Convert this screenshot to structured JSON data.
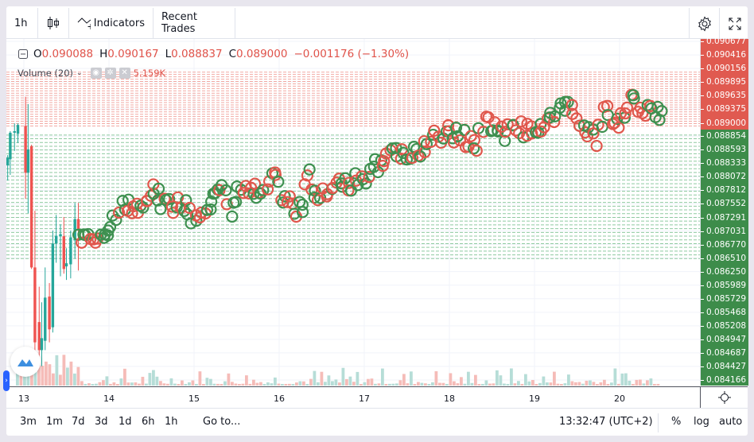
{
  "toolbar": {
    "interval": "1h",
    "indicators": "Indicators",
    "recent_trades": "Recent Trades"
  },
  "legend": {
    "o_label": "O",
    "o": "0.090088",
    "h_label": "H",
    "h": "0.090167",
    "l_label": "L",
    "l": "0.088837",
    "c_label": "C",
    "c": "0.089000",
    "change": "−0.001176 (−1.30%)"
  },
  "volume": {
    "label": "Volume (20)",
    "value": "5.159K"
  },
  "price_axis": {
    "labels": [
      "0.090677",
      "0.090416",
      "0.090156",
      "0.089895",
      "0.089635",
      "0.089375",
      "0.088854",
      "0.088593",
      "0.088333",
      "0.088072",
      "0.087812",
      "0.087552",
      "0.087291",
      "0.087031",
      "0.086770",
      "0.086510",
      "0.086250",
      "0.085989",
      "0.085729",
      "0.085468",
      "0.085208",
      "0.084947",
      "0.084687",
      "0.084427",
      "0.084166"
    ],
    "current": "0.089000",
    "ask_color": "#e05a50",
    "bid_color": "#3d8c4a",
    "ylim": [
      0.084166,
      0.090677
    ]
  },
  "time_axis": {
    "labels": [
      "13",
      "14",
      "15",
      "16",
      "17",
      "18",
      "19",
      "20"
    ]
  },
  "bottom": {
    "ranges": [
      "3m",
      "1m",
      "7d",
      "3d",
      "1d",
      "6h",
      "1h"
    ],
    "goto": "Go to...",
    "clock": "13:32:47 (UTC+2)",
    "percent": "%",
    "log": "log",
    "auto": "auto"
  },
  "chart_data": {
    "type": "candlestick",
    "candles": [
      [
        12.81,
        0.08829,
        0.08849,
        0.088,
        0.08844
      ],
      [
        12.84,
        0.08841,
        0.08895,
        0.08811,
        0.08892
      ],
      [
        12.89,
        0.08892,
        0.0891,
        0.08857,
        0.08895
      ],
      [
        12.93,
        0.0889,
        0.0891,
        0.08872,
        0.08907
      ],
      [
        13.02,
        0.08905,
        0.08961,
        0.08765,
        0.08815
      ],
      [
        13.05,
        0.08815,
        0.08947,
        0.08737,
        0.0886
      ],
      [
        13.09,
        0.08866,
        0.08869,
        0.0863,
        0.08633
      ],
      [
        13.13,
        0.08633,
        0.08742,
        0.08451,
        0.08489
      ],
      [
        13.18,
        0.08528,
        0.08596,
        0.08443,
        0.08474
      ],
      [
        13.21,
        0.08474,
        0.08566,
        0.08443,
        0.08497
      ],
      [
        13.25,
        0.08492,
        0.08633,
        0.08474,
        0.08575
      ],
      [
        13.3,
        0.08577,
        0.08603,
        0.08489,
        0.08514
      ],
      [
        13.34,
        0.08518,
        0.08704,
        0.08508,
        0.08679
      ],
      [
        13.38,
        0.08679,
        0.08734,
        0.08642,
        0.08694
      ],
      [
        13.43,
        0.08693,
        0.08716,
        0.08616,
        0.08697
      ],
      [
        13.47,
        0.08693,
        0.0873,
        0.08621,
        0.0863
      ],
      [
        13.5,
        0.08635,
        0.0867,
        0.08609,
        0.08641
      ],
      [
        13.55,
        0.08639,
        0.08704,
        0.08612,
        0.08691
      ],
      [
        13.6,
        0.08685,
        0.08757,
        0.0865,
        0.08726
      ],
      [
        13.64,
        0.08726,
        0.08757,
        0.08627,
        0.08704
      ]
    ],
    "trades": [
      [
        13.65,
        0.08681
      ],
      [
        13.93,
        0.086887
      ],
      [
        14.03,
        0.087192
      ],
      [
        14.21,
        0.087574
      ],
      [
        14.4,
        0.087345
      ],
      [
        14.54,
        0.087804
      ],
      [
        14.68,
        0.087498
      ],
      [
        14.87,
        0.087574
      ],
      [
        15.01,
        0.087269
      ],
      [
        15.15,
        0.087498
      ],
      [
        15.34,
        0.087804
      ],
      [
        15.43,
        0.087422
      ],
      [
        15.52,
        0.08788
      ],
      [
        15.71,
        0.087804
      ],
      [
        15.94,
        0.088033
      ],
      [
        16.08,
        0.087574
      ],
      [
        16.27,
        0.087422
      ],
      [
        16.32,
        0.088186
      ],
      [
        16.46,
        0.087651
      ],
      [
        16.64,
        0.08788
      ],
      [
        16.83,
        0.087956
      ],
      [
        17.02,
        0.088033
      ],
      [
        17.11,
        0.088186
      ],
      [
        17.3,
        0.088644
      ],
      [
        17.39,
        0.088415
      ],
      [
        17.58,
        0.088491
      ],
      [
        17.77,
        0.088721
      ],
      [
        17.95,
        0.08895
      ],
      [
        18.09,
        0.088873
      ],
      [
        18.33,
        0.088721
      ],
      [
        18.42,
        0.089179
      ],
      [
        18.61,
        0.088873
      ],
      [
        18.79,
        0.089026
      ],
      [
        18.98,
        0.08895
      ],
      [
        19.17,
        0.089179
      ],
      [
        19.4,
        0.089408
      ],
      [
        19.54,
        0.089103
      ],
      [
        19.73,
        0.088721
      ],
      [
        19.82,
        0.089408
      ],
      [
        19.96,
        0.089026
      ],
      [
        20.1,
        0.089485
      ],
      [
        20.24,
        0.089485
      ],
      [
        20.38,
        0.089256
      ],
      [
        20.52,
        0.089256
      ]
    ],
    "ask_levels": [
      0.08905,
      0.09012
    ],
    "bid_levels": [
      0.0865,
      0.0889
    ],
    "up_color": "#26a69a",
    "down_color": "#ef5350",
    "xlim": [
      12.72,
      20.88
    ]
  }
}
